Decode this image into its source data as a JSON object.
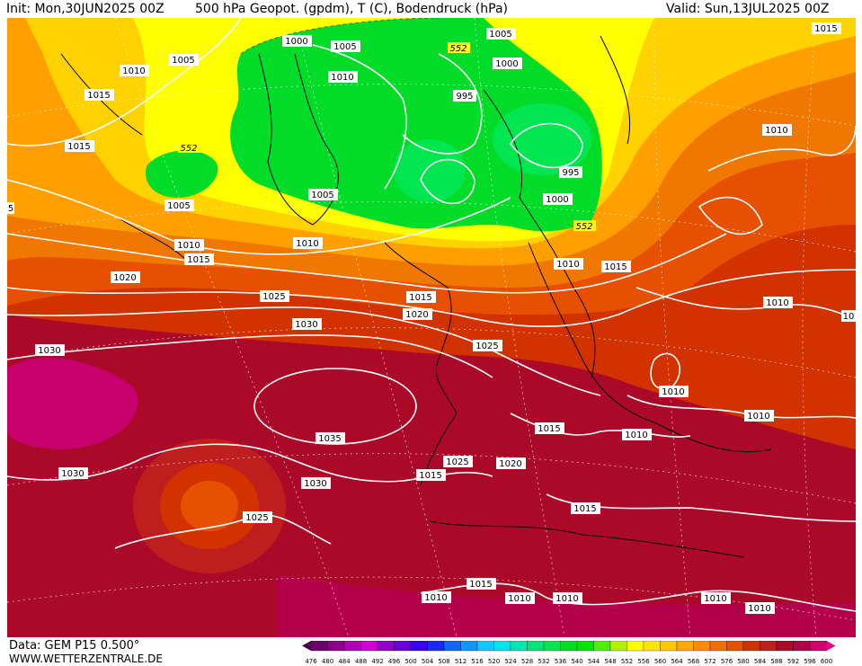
{
  "header": {
    "init": "Init: Mon,30JUN2025 00Z",
    "title": "500 hPa Geopot. (gpdm), T (C), Bodendruck (hPa)",
    "valid": "Valid: Sun,13JUL2025 00Z"
  },
  "footer": {
    "data_source": "Data: GEM P15 0.500°",
    "website": "WWW.WETTERZENTRALE.DE"
  },
  "colorbar": {
    "ticks": [
      "476",
      "480",
      "484",
      "488",
      "492",
      "496",
      "500",
      "504",
      "508",
      "512",
      "516",
      "520",
      "524",
      "528",
      "532",
      "536",
      "540",
      "544",
      "548",
      "552",
      "556",
      "560",
      "564",
      "568",
      "572",
      "576",
      "580",
      "584",
      "588",
      "592",
      "596",
      "600"
    ],
    "colors": [
      "#4a0048",
      "#6a006a",
      "#8a008a",
      "#b000b0",
      "#d000d0",
      "#9000d0",
      "#6a00e0",
      "#3a00f0",
      "#1a28f8",
      "#1464ff",
      "#1496ff",
      "#14c8ff",
      "#00e6e6",
      "#00e6b4",
      "#00e678",
      "#00e650",
      "#00dc28",
      "#00e600",
      "#50f000",
      "#b4f000",
      "#ffff00",
      "#ffe600",
      "#ffc800",
      "#ffaa00",
      "#ff8c00",
      "#f06e00",
      "#e65000",
      "#d23200",
      "#be1e1e",
      "#aa0a28",
      "#b4004a",
      "#d2006e",
      "#e6008c"
    ]
  },
  "map": {
    "colors": {
      "deep_green": "#00e600",
      "mid_green": "#00dc28",
      "light_green": "#50f000",
      "yellow": "#ffff00",
      "gold": "#ffd200",
      "orange": "#ffa000",
      "dark_orange": "#f07800",
      "red_orange": "#e65000",
      "red": "#d23200",
      "dark_red": "#be1e1e",
      "crimson": "#aa0a28",
      "magenta": "#c8006e"
    },
    "geopotential_labels": [
      "552",
      "552",
      "552"
    ],
    "pressure_labels": [
      "1000",
      "1005",
      "1005",
      "1000",
      "1015",
      "1010",
      "1005",
      "1010",
      "1015",
      "1015",
      "1010",
      "995",
      "1005",
      "995",
      "1000",
      "1005",
      "1010",
      "1010",
      "1015",
      "1010",
      "1020",
      "1015",
      "1025",
      "1030",
      "1015",
      "1020",
      "1025",
      "1030",
      "1035",
      "1010",
      "1010",
      "1010",
      "1030",
      "1025",
      "1030",
      "1015",
      "1025",
      "1020",
      "1010",
      "1015",
      "1015",
      "1015",
      "1010",
      "1010",
      "1010",
      "1010",
      "1010",
      "1025",
      "5",
      "10"
    ]
  }
}
